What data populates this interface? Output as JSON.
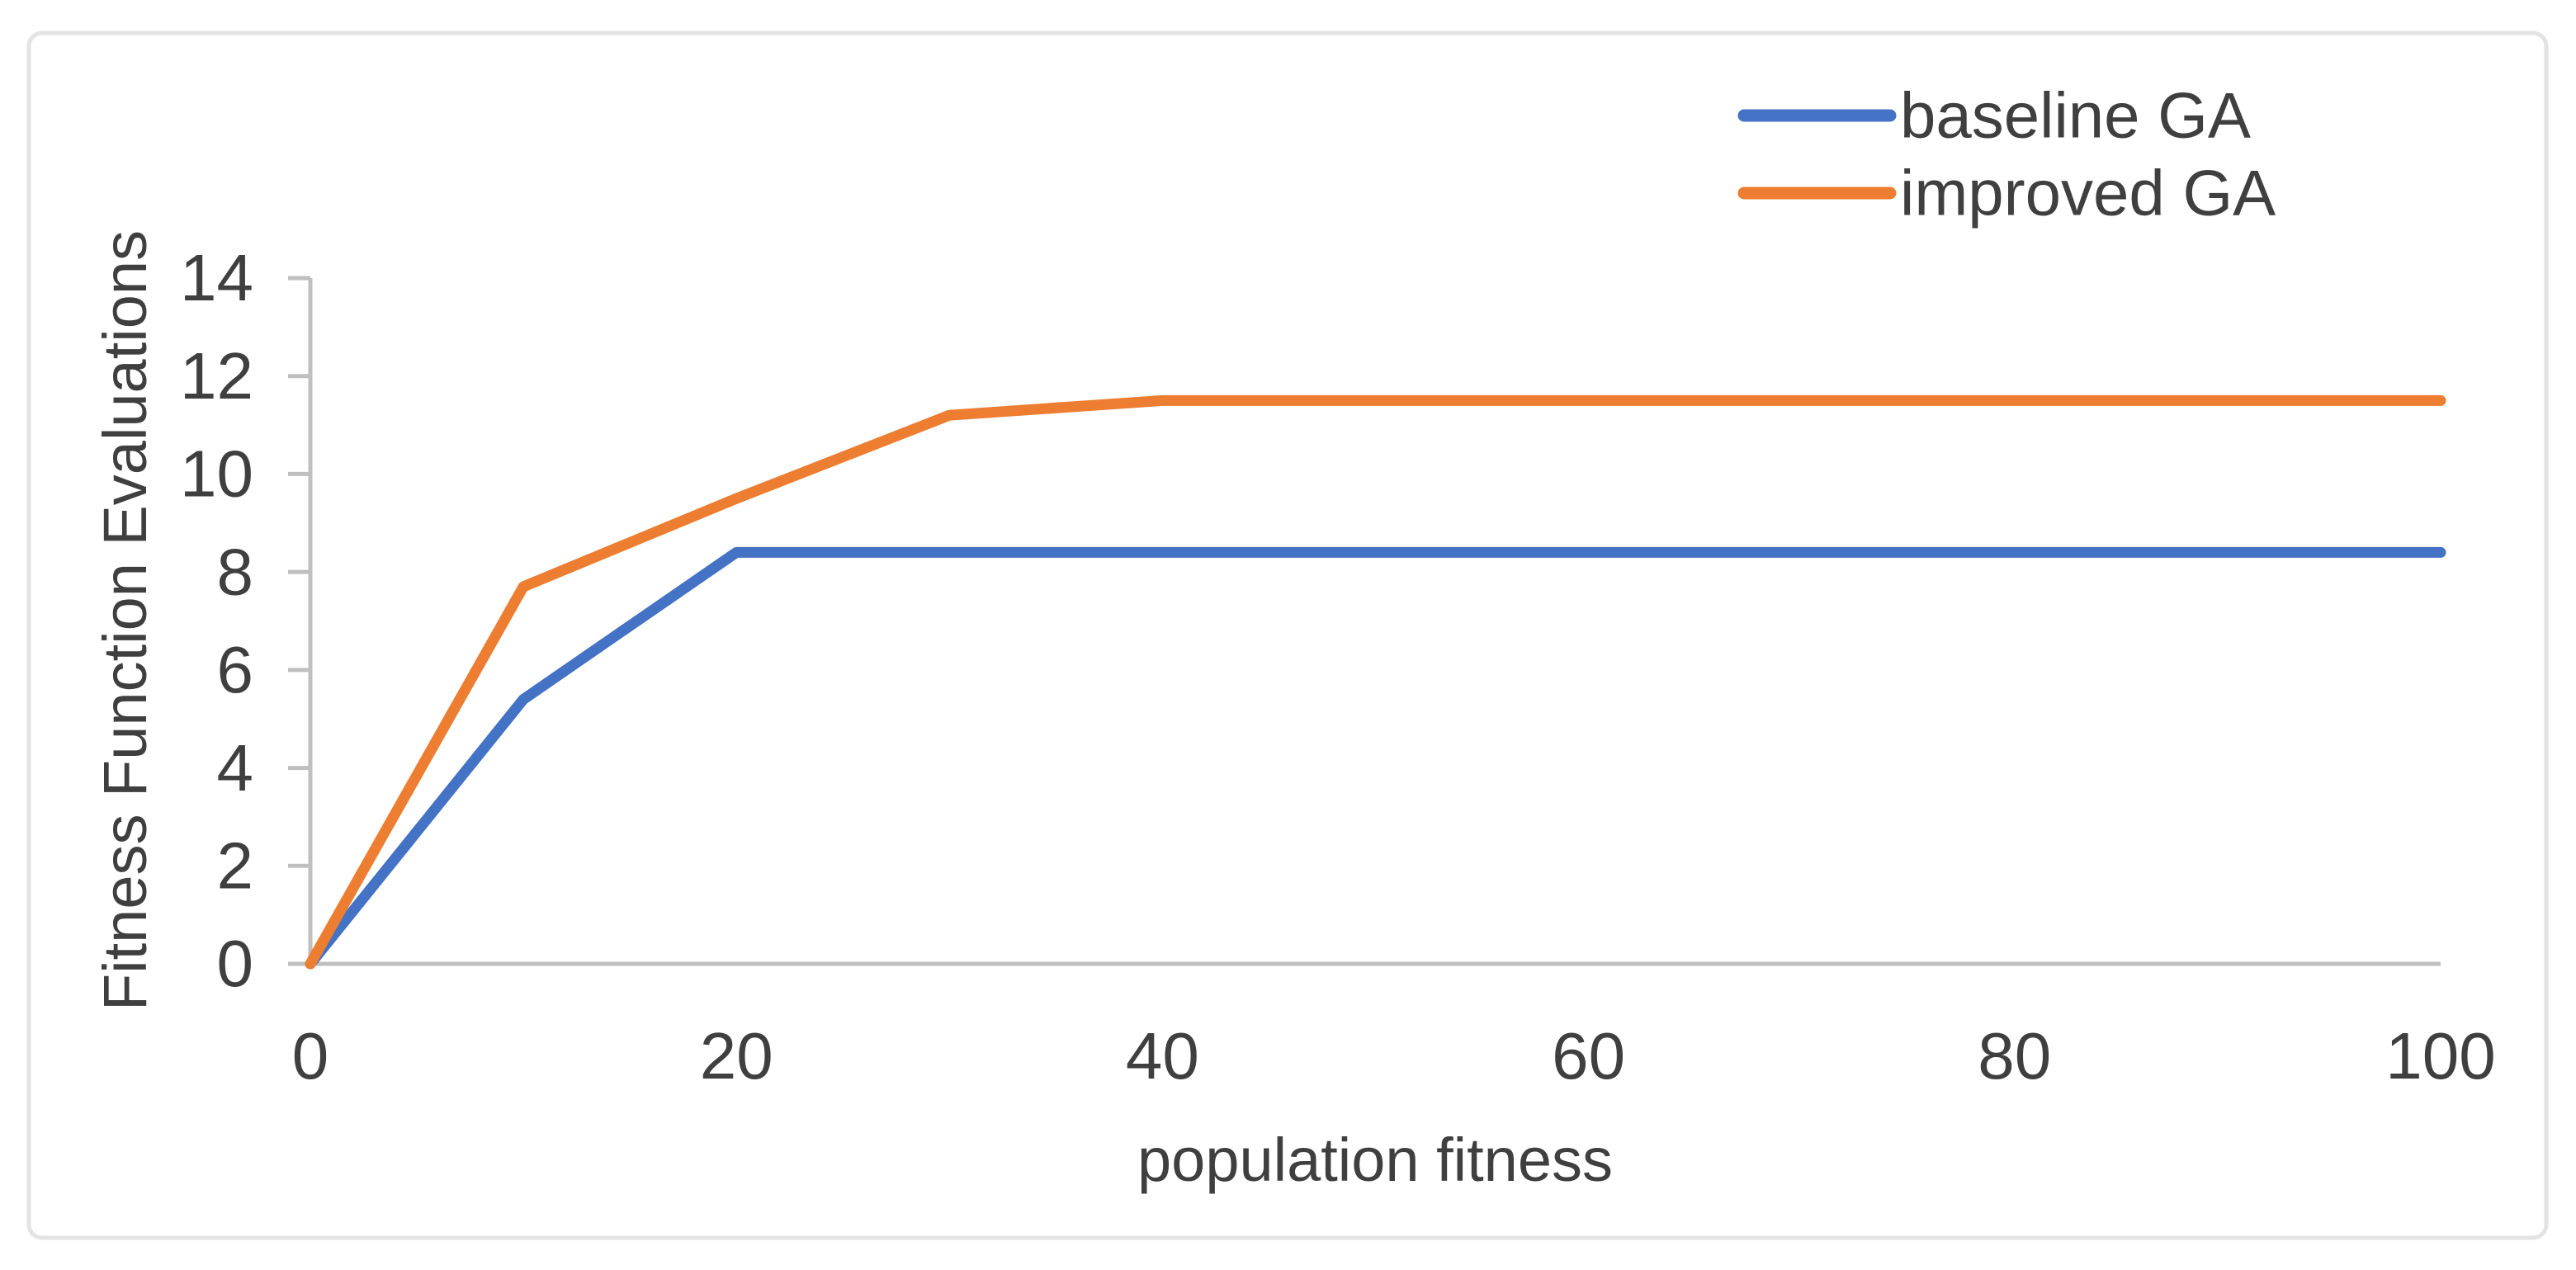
{
  "figure": {
    "background": "#FFFFFF",
    "border_color": "#E3E3E3"
  },
  "chart_data": {
    "type": "line",
    "title": "",
    "xlabel": "population fitness",
    "ylabel": "Fitness Function Evaluations",
    "x": [
      0,
      10,
      20,
      30,
      40,
      50,
      60,
      70,
      80,
      90,
      100
    ],
    "series": [
      {
        "name": "baseline GA",
        "color": "#4472C4",
        "values": [
          0,
          5.4,
          8.4,
          8.4,
          8.4,
          8.4,
          8.4,
          8.4,
          8.4,
          8.4,
          8.4
        ]
      },
      {
        "name": "improved GA",
        "color": "#ED7D31",
        "values": [
          0,
          7.7,
          9.5,
          11.2,
          11.5,
          11.5,
          11.5,
          11.5,
          11.5,
          11.5,
          11.5
        ]
      }
    ],
    "x_ticks": [
      0,
      20,
      40,
      60,
      80,
      100
    ],
    "y_ticks": [
      0,
      2,
      4,
      6,
      8,
      10,
      12,
      14
    ],
    "xlim": [
      0,
      100
    ],
    "ylim": [
      0,
      14
    ],
    "grid": false,
    "legend_position": "top-right",
    "axis_color": "#BFBFBF",
    "text_color": "#3F3F3F"
  }
}
